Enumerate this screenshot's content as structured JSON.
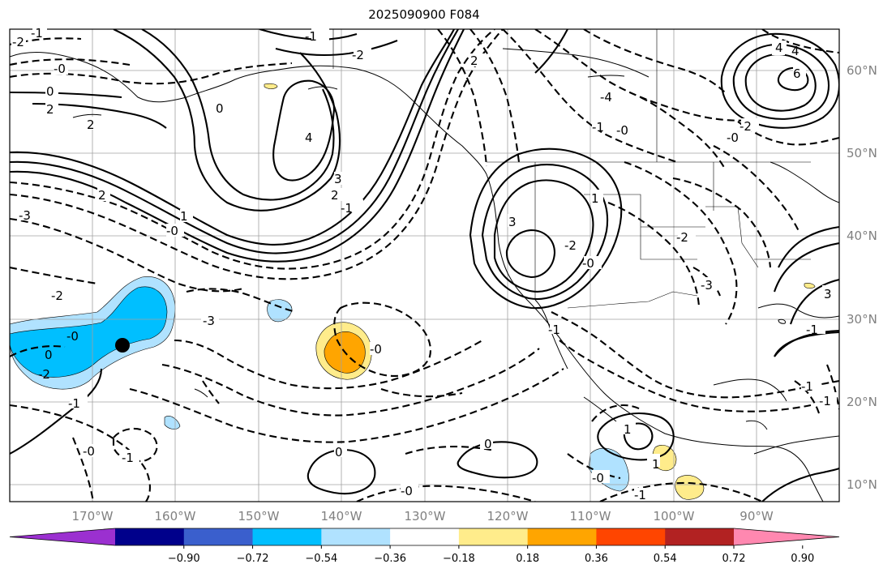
{
  "title": "2025090900 F084",
  "map": {
    "lat_ticks": [
      "60°N",
      "50°N",
      "40°N",
      "30°N",
      "20°N",
      "10°N"
    ],
    "lon_ticks": [
      "170°W",
      "160°W",
      "150°W",
      "140°W",
      "130°W",
      "120°W",
      "110°W",
      "100°W",
      "90°W"
    ],
    "contour_labels": [
      "-2",
      "-1",
      "-0",
      "0",
      "2",
      "2",
      "2",
      "-3",
      "-0",
      "-2",
      "-0",
      "-2",
      "0",
      "-1",
      "-1",
      "-0",
      "0",
      "1",
      "2",
      "3",
      "4",
      "-2",
      "-3",
      "-1",
      "-1",
      "-0",
      "2",
      "-4",
      "-1",
      "-0",
      "1",
      "-3",
      "-2",
      "4",
      "6",
      "-0",
      "-2",
      "3",
      "-2",
      "-0",
      "0",
      "1",
      "-1",
      "-1",
      "-0",
      "0",
      "-1",
      "-0",
      "1",
      "3",
      "4",
      "-1",
      "-1"
    ],
    "dot_label": "",
    "colors": {
      "coastline": "#000000",
      "grid": "#a0a0a0",
      "axis_label": "#808080"
    }
  },
  "colorbar": {
    "ticks": [
      "−0.90",
      "−0.72",
      "−0.54",
      "−0.36",
      "−0.18",
      "0.18",
      "0.36",
      "0.54",
      "0.72",
      "0.90"
    ],
    "colors": [
      "#9b30d0",
      "#00008b",
      "#3a5fcd",
      "#00bfff",
      "#b0e2ff",
      "#ffffff",
      "#ffec8b",
      "#ffa500",
      "#ff4500",
      "#b22222",
      "#ff88b0"
    ]
  }
}
